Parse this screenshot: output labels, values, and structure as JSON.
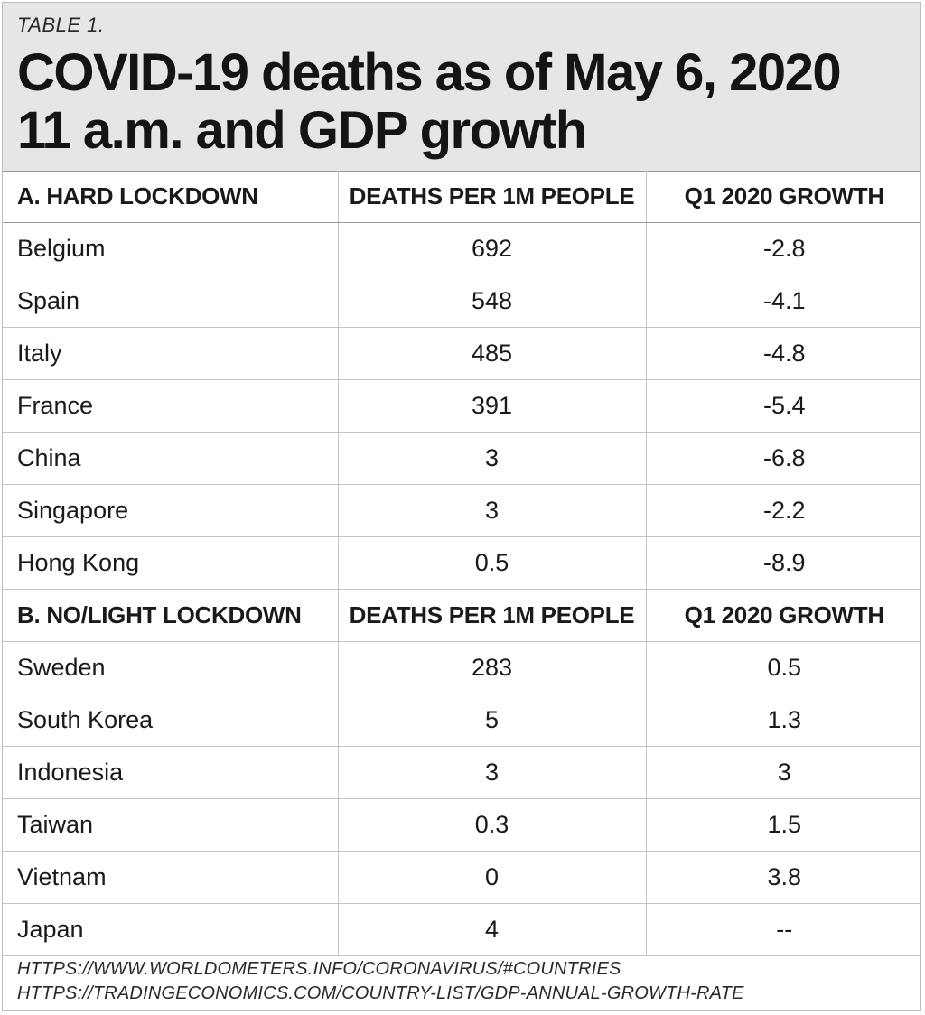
{
  "table_label": "TABLE 1.",
  "title": [
    "COVID-19 deaths as of May 6, 2020",
    "11 a.m. and GDP growth"
  ],
  "chart_data": {
    "type": "table",
    "sections": [
      {
        "headers": [
          "A. HARD LOCKDOWN",
          "DEATHS PER 1M PEOPLE",
          "Q1 2020 GROWTH"
        ],
        "rows": [
          [
            "Belgium",
            "692",
            "-2.8"
          ],
          [
            "Spain",
            "548",
            "-4.1"
          ],
          [
            "Italy",
            "485",
            "-4.8"
          ],
          [
            "France",
            "391",
            "-5.4"
          ],
          [
            "China",
            "3",
            "-6.8"
          ],
          [
            "Singapore",
            "3",
            "-2.2"
          ],
          [
            "Hong Kong",
            "0.5",
            "-8.9"
          ]
        ]
      },
      {
        "headers": [
          "B. NO/LIGHT LOCKDOWN",
          "DEATHS PER 1M PEOPLE",
          "Q1 2020 GROWTH"
        ],
        "rows": [
          [
            "Sweden",
            "283",
            "0.5"
          ],
          [
            "South Korea",
            "5",
            "1.3"
          ],
          [
            "Indonesia",
            "3",
            "3"
          ],
          [
            "Taiwan",
            "0.3",
            "1.5"
          ],
          [
            "Vietnam",
            "0",
            "3.8"
          ],
          [
            "Japan",
            "4",
            "--"
          ]
        ]
      }
    ]
  },
  "sources": [
    "HTTPS://WWW.WORLDOMETERS.INFO/CORONAVIRUS/#COUNTRIES",
    "HTTPS://TRADINGECONOMICS.COM/COUNTRY-LIST/GDP-ANNUAL-GROWTH-RATE"
  ]
}
